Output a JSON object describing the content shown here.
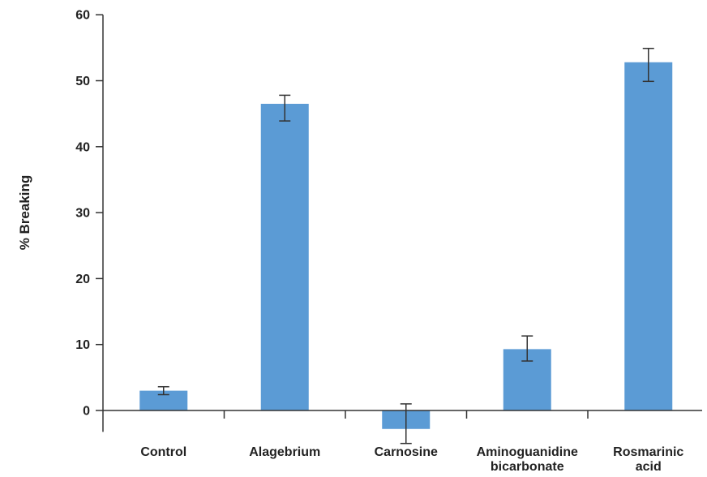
{
  "chart_data": {
    "type": "bar",
    "title": "",
    "xlabel": "",
    "ylabel": "% Breaking",
    "ylim": [
      -3,
      60
    ],
    "yticks": [
      0,
      10,
      20,
      30,
      40,
      50,
      60
    ],
    "grid": false,
    "categories": [
      [
        "Control"
      ],
      [
        "Alagebrium"
      ],
      [
        "Carnosine"
      ],
      [
        "Aminoguanidine",
        "bicarbonate"
      ],
      [
        "Rosmarinic",
        "acid"
      ]
    ],
    "values": [
      3.0,
      46.5,
      -2.8,
      9.3,
      52.8
    ],
    "error_low": [
      2.4,
      43.9,
      -5.0,
      7.5,
      49.9
    ],
    "error_high": [
      3.6,
      47.8,
      1.0,
      11.3,
      54.9
    ],
    "bar_color": "#5b9bd5",
    "axis_color": "#333333"
  }
}
